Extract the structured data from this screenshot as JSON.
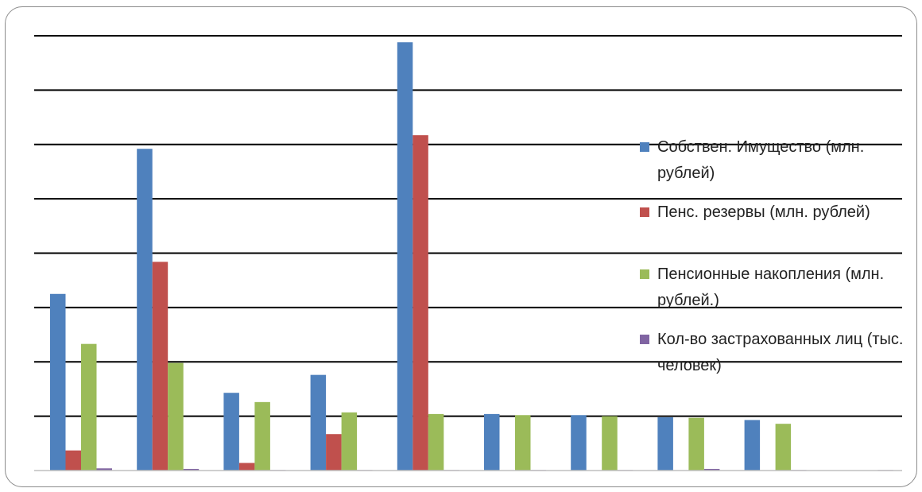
{
  "chart_data": {
    "type": "bar",
    "categories": [
      "",
      "",
      "",
      "",
      "",
      "",
      "",
      "",
      "",
      ""
    ],
    "y_range": [
      0,
      8
    ],
    "gridlines": [
      1,
      2,
      3,
      4,
      5,
      6,
      7,
      8
    ],
    "grid": true,
    "legend_position": "right",
    "colors": [
      "#4f81bd",
      "#c0504d",
      "#9bbb59",
      "#8064a2"
    ],
    "series": [
      {
        "name": "Собствен. Имущество (млн. рублей)",
        "values": [
          3.25,
          5.92,
          1.43,
          1.76,
          7.88,
          1.04,
          1.02,
          0.98,
          0.93,
          0
        ]
      },
      {
        "name": "Пенс. резервы (млн. рублей)",
        "values": [
          0.37,
          3.84,
          0.14,
          0.67,
          6.17,
          0,
          0,
          0,
          0,
          0
        ]
      },
      {
        "name": "Пенсионные накопления (млн. рублей.)",
        "values": [
          2.33,
          1.98,
          1.26,
          1.07,
          1.04,
          1.02,
          1.0,
          0.97,
          0.86,
          0
        ]
      },
      {
        "name": "Кол-во застрахованных лиц (тыс. человек)",
        "values": [
          0.04,
          0.03,
          0.01,
          0.01,
          0.01,
          0.01,
          0.01,
          0.03,
          0.01,
          0.01
        ]
      }
    ]
  }
}
